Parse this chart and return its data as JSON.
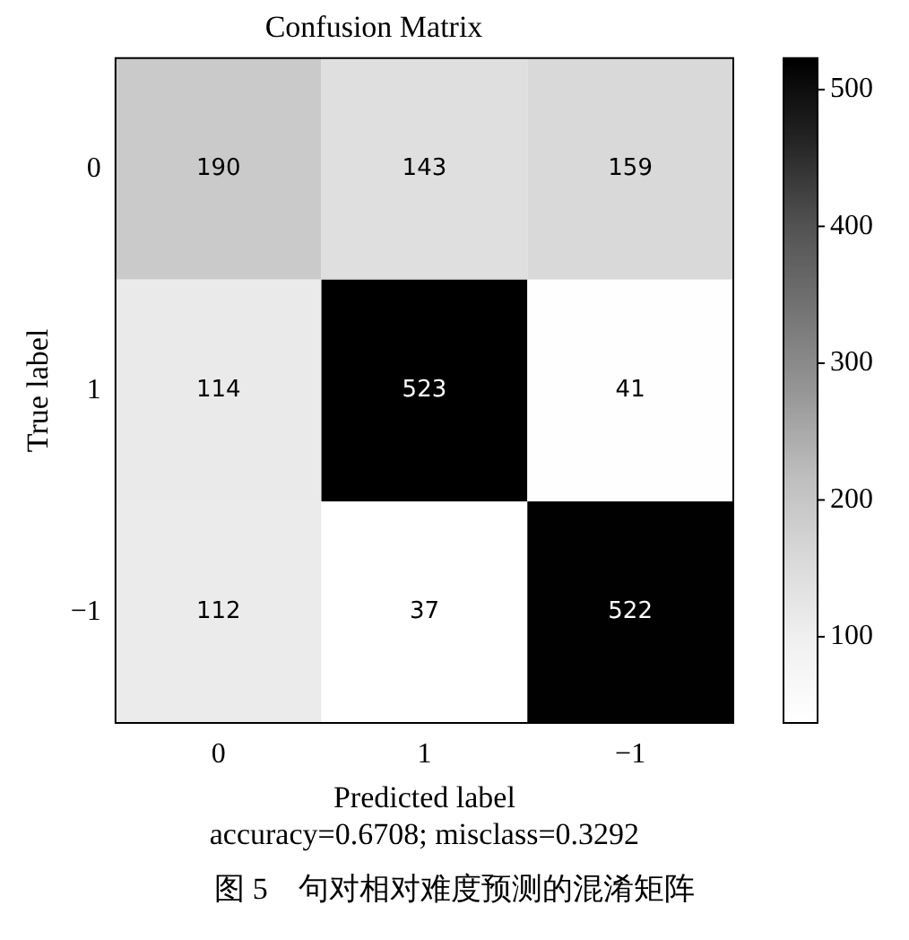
{
  "chart_data": {
    "type": "heatmap",
    "title": "Confusion Matrix",
    "xlabel": "Predicted label",
    "ylabel": "True label",
    "categories": [
      "0",
      "1",
      "−1"
    ],
    "y_categories": [
      "0",
      "1",
      "−1"
    ],
    "cells": [
      [
        190,
        143,
        159
      ],
      [
        114,
        523,
        41
      ],
      [
        112,
        37,
        522
      ]
    ],
    "clim": [
      37,
      523
    ],
    "cticks": [
      100,
      200,
      300,
      400,
      500
    ],
    "data_labels": true,
    "annotations": [
      "accuracy=0.6708; misclass=0.3292",
      "图 5　句对相对难度预测的混淆矩阵"
    ]
  }
}
